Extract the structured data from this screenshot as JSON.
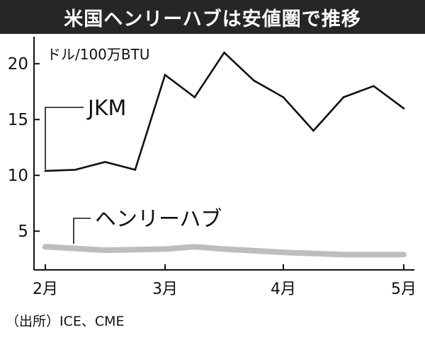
{
  "chart_data": {
    "type": "line",
    "title": "米国ヘンリーハブは安値圏で推移",
    "unit": "ドル/100万BTU",
    "x_ticks": [
      "2月",
      "3月",
      "4月",
      "5月"
    ],
    "y_ticks": [
      5,
      10,
      15,
      20
    ],
    "ylim": [
      2,
      22
    ],
    "grid": false,
    "series": [
      {
        "name": "JKM",
        "color": "#111111",
        "x": [
          0,
          0.25,
          0.5,
          0.75,
          1.0,
          1.25,
          1.5,
          1.75,
          2.0,
          2.25,
          2.5,
          2.75,
          3.0
        ],
        "values": [
          10.4,
          10.5,
          11.2,
          10.5,
          19.0,
          17.0,
          21.0,
          18.5,
          17.0,
          14.0,
          17.0,
          18.0,
          16.0
        ]
      },
      {
        "name": "ヘンリーハブ",
        "color": "#bdbdbd",
        "x": [
          0,
          0.5,
          1.0,
          1.25,
          1.5,
          2.0,
          2.5,
          3.0
        ],
        "values": [
          3.6,
          3.3,
          3.4,
          3.6,
          3.4,
          3.1,
          2.9,
          2.9
        ]
      }
    ]
  },
  "source": "（出所）ICE、CME"
}
